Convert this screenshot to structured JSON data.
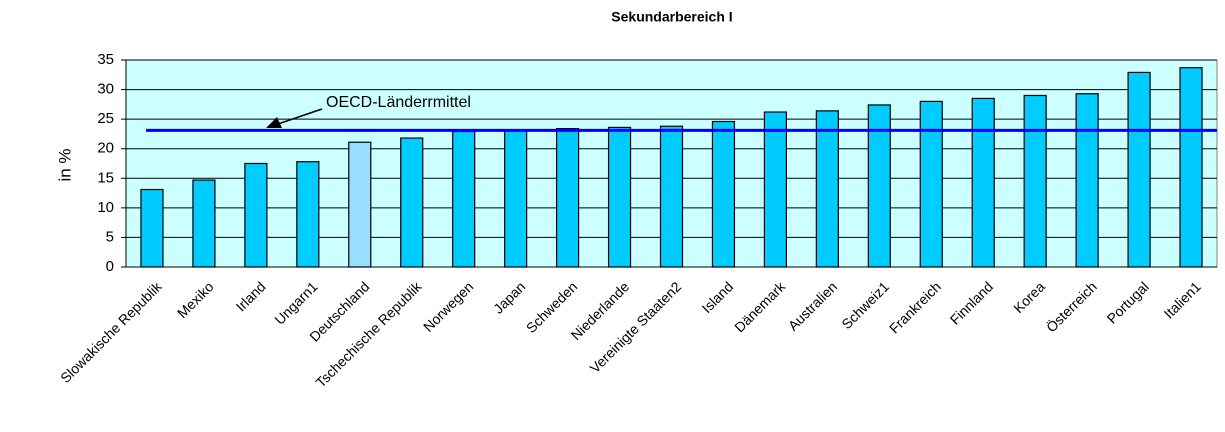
{
  "chart_data": {
    "type": "bar",
    "title": "Sekundarbereich I",
    "ylabel": "in %",
    "categories": [
      "Slowakische Republik",
      "Mexiko",
      "Irland",
      "Ungarn1",
      "Deutschland",
      "Tschechische Republik",
      "Norwegen",
      "Japan",
      "Schweden",
      "Niederlande",
      "Vereinigte Staaten2",
      "Island",
      "Dänemark",
      "Australien",
      "Schweiz1",
      "Frankreich",
      "Finnland",
      "Korea",
      "Österreich",
      "Portugal",
      "Italien1"
    ],
    "values": [
      13.1,
      14.7,
      17.5,
      17.8,
      21.1,
      21.8,
      22.9,
      23.0,
      23.4,
      23.6,
      23.8,
      24.6,
      26.2,
      26.4,
      27.4,
      28.0,
      28.5,
      29.0,
      29.3,
      32.9,
      33.7
    ],
    "colors": [
      "#00ccff",
      "#00ccff",
      "#00ccff",
      "#00ccff",
      "#99ddff",
      "#00ccff",
      "#00ccff",
      "#00ccff",
      "#00ccff",
      "#00ccff",
      "#00ccff",
      "#00ccff",
      "#00ccff",
      "#00ccff",
      "#00ccff",
      "#00ccff",
      "#00ccff",
      "#00ccff",
      "#00ccff",
      "#00ccff",
      "#00ccff"
    ],
    "reference_line": {
      "label": "OECD-Länderrmittel",
      "value": 23.1,
      "color": "#0000ff"
    },
    "ylim": [
      0,
      35
    ],
    "yticks": [
      0,
      5,
      10,
      15,
      20,
      25,
      30,
      35
    ],
    "grid": true
  }
}
